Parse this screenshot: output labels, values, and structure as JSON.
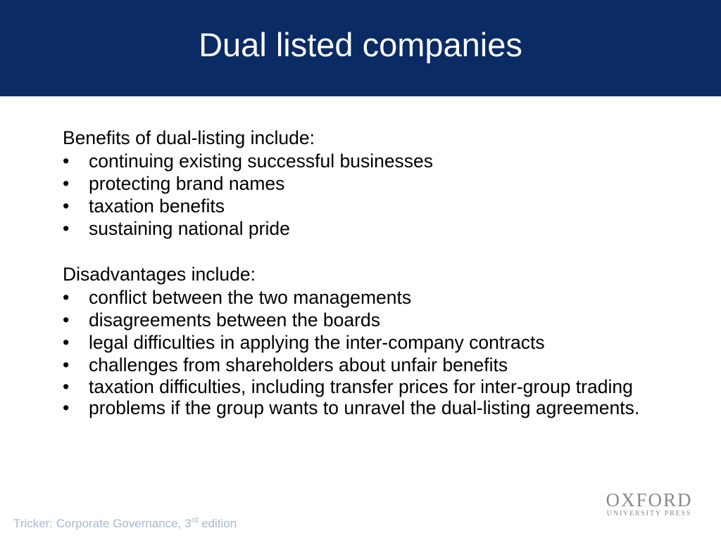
{
  "slide": {
    "title": "Dual listed companies",
    "benefits_heading": "Benefits of dual-listing include:",
    "benefits": [
      "continuing existing successful businesses",
      "protecting brand names",
      "taxation benefits",
      "sustaining national pride"
    ],
    "disadvantages_heading": "Disadvantages include:",
    "disadvantages": [
      "conflict between the two managements",
      "disagreements between the boards",
      "legal difficulties in applying the inter-company contracts",
      "challenges from shareholders about unfair benefits",
      "taxation difficulties, including transfer prices for inter-group trading",
      "problems if the group wants to unravel the dual-listing agreements."
    ],
    "bullet_glyph": "•"
  },
  "footer": {
    "text_before": "Tricker: Corporate Governance, 3",
    "superscript": "rd",
    "text_after": " edition"
  },
  "logo": {
    "main": "OXFORD",
    "sub": "UNIVERSITY PRESS"
  },
  "colors": {
    "header_bg": "#0a2b64",
    "title_text": "#ffffff",
    "footer_text": "#a9b7cc",
    "logo_text": "#8a8a8a"
  }
}
